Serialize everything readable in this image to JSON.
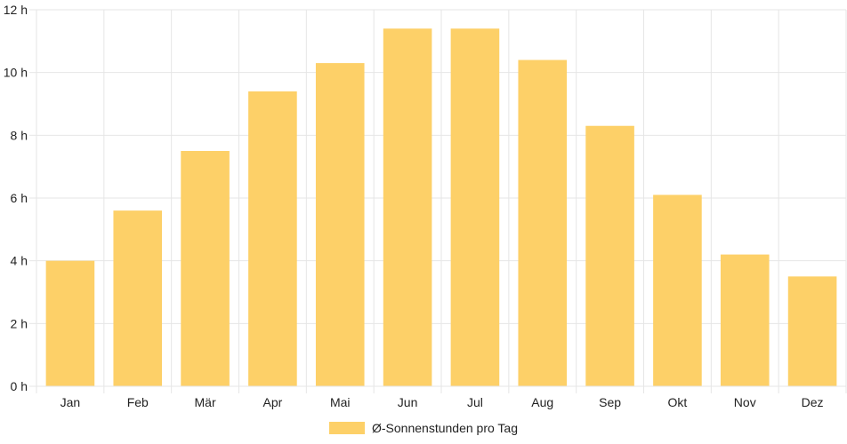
{
  "colors": {
    "bar": "#fdd068",
    "grid": "#e6e6e6",
    "text": "#222222"
  },
  "chart_data": {
    "type": "bar",
    "categories": [
      "Jan",
      "Feb",
      "Mär",
      "Apr",
      "Mai",
      "Jun",
      "Jul",
      "Aug",
      "Sep",
      "Okt",
      "Nov",
      "Dez"
    ],
    "series": [
      {
        "name": "Ø-Sonnenstunden pro Tag",
        "values": [
          4.0,
          5.6,
          7.5,
          9.4,
          10.3,
          11.4,
          11.4,
          10.4,
          8.3,
          6.1,
          4.2,
          3.5
        ]
      }
    ],
    "yticks": [
      "0 h",
      "2 h",
      "4 h",
      "6 h",
      "8 h",
      "10 h",
      "12 h"
    ],
    "ylim": [
      0,
      12
    ],
    "grid": true,
    "legend": "bottom-center"
  }
}
